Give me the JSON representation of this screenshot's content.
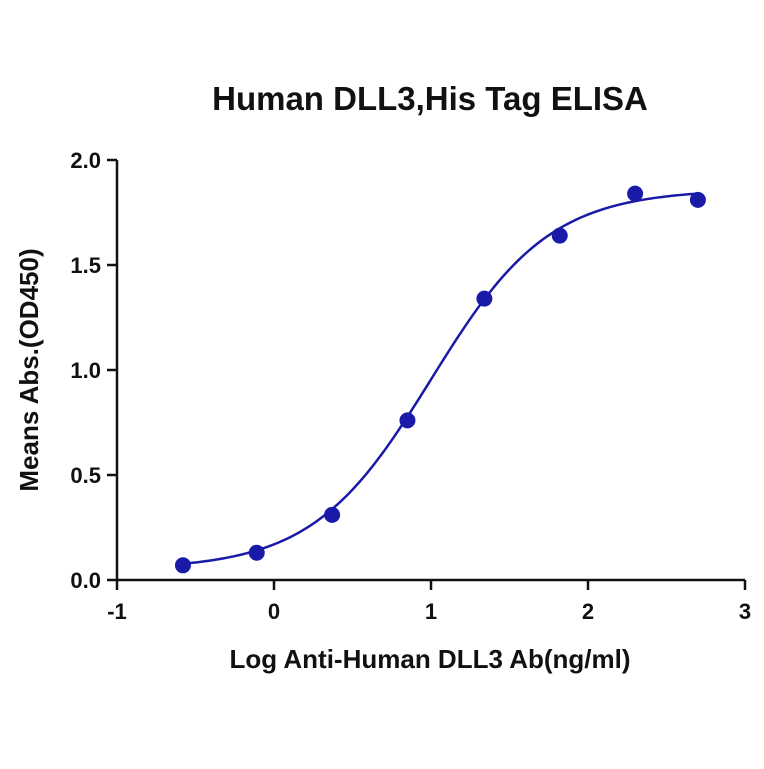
{
  "chart_data": {
    "type": "scatter",
    "title": "Human DLL3,His Tag ELISA",
    "xlabel": "Log Anti-Human DLL3 Ab(ng/ml)",
    "ylabel": "Means Abs.(OD450)",
    "xlim": [
      -1,
      3
    ],
    "ylim": [
      0,
      2.0
    ],
    "x_ticks": [
      "-1",
      "0",
      "1",
      "2",
      "3"
    ],
    "y_ticks": [
      "0.0",
      "0.5",
      "1.0",
      "1.5",
      "2.0"
    ],
    "grid": false,
    "legend": "none",
    "series": [
      {
        "points": [
          {
            "x": -0.58,
            "y": 0.07
          },
          {
            "x": -0.11,
            "y": 0.13
          },
          {
            "x": 0.37,
            "y": 0.31
          },
          {
            "x": 0.85,
            "y": 0.76
          },
          {
            "x": 1.34,
            "y": 1.34
          },
          {
            "x": 1.82,
            "y": 1.64
          },
          {
            "x": 2.3,
            "y": 1.84
          },
          {
            "x": 2.7,
            "y": 1.81
          }
        ],
        "fit": "four-parameter logistic",
        "color": "#1a1aa8"
      }
    ],
    "fit_params": {
      "bottom": 0.05,
      "top": 1.86,
      "logEC50": 1.0,
      "hill": 1.15
    }
  }
}
